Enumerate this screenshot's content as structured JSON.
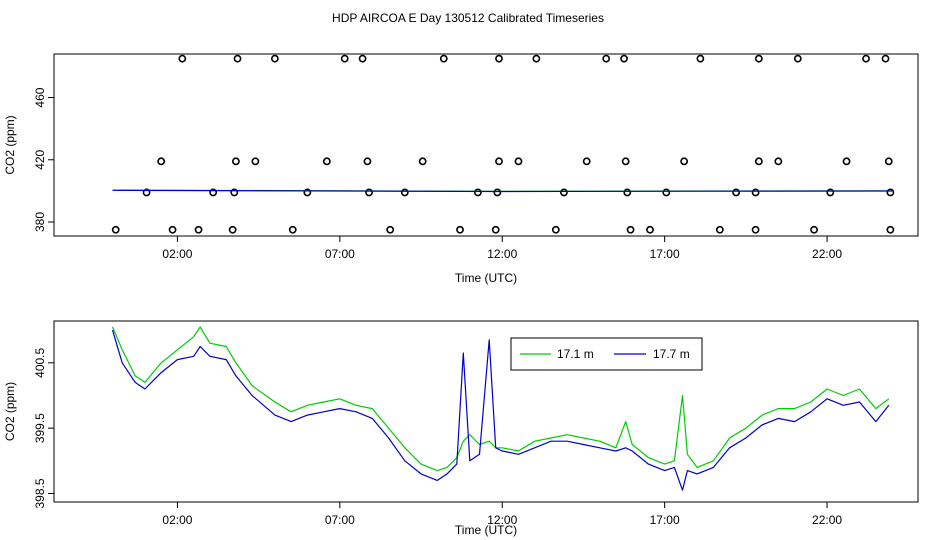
{
  "title": "HDP AIRCOA E  Day 130512  Calibrated Timeseries",
  "colors": {
    "green": "#00cc00",
    "blue": "#0000cc",
    "frame": "#000000"
  },
  "chart_data": [
    {
      "type": "scatter",
      "xlabel": "Time (UTC)",
      "ylabel": "CO2 (ppm)",
      "xlim": [
        -1.8,
        24.8
      ],
      "ylim": [
        371,
        488
      ],
      "x_ticks": [
        2,
        7,
        12,
        17,
        22
      ],
      "x_tick_labels": [
        "02:00",
        "07:00",
        "12:00",
        "17:00",
        "22:00"
      ],
      "y_ticks": [
        380,
        420,
        460
      ],
      "y_tick_labels": [
        "380",
        "420",
        "460"
      ],
      "series": [
        {
          "marker": "open-circle",
          "x": [
            0.1,
            1.85,
            2.65,
            3.7,
            5.55,
            8.55,
            10.7,
            11.8,
            13.65,
            15.95,
            16.55,
            18.7,
            19.8,
            21.6,
            23.95
          ],
          "y": [
            375,
            375,
            375,
            375,
            375,
            375,
            375,
            375,
            375,
            375,
            375,
            375,
            375,
            375,
            375
          ]
        },
        {
          "marker": "open-circle",
          "x": [
            1.05,
            3.1,
            3.75,
            6.0,
            7.9,
            9.0,
            11.25,
            11.85,
            13.9,
            15.85,
            17.05,
            19.2,
            19.8,
            22.1,
            23.95
          ],
          "y": [
            399,
            399,
            399,
            399,
            399,
            399,
            399,
            399,
            399,
            399,
            399,
            399,
            399,
            399,
            399
          ]
        },
        {
          "marker": "open-circle",
          "x": [
            1.5,
            3.8,
            4.4,
            6.6,
            7.85,
            9.55,
            11.9,
            12.5,
            14.6,
            15.8,
            17.6,
            19.9,
            20.5,
            22.6,
            23.9
          ],
          "y": [
            419,
            419,
            419,
            419,
            419,
            419,
            419,
            419,
            419,
            419,
            419,
            419,
            419,
            419,
            419
          ]
        },
        {
          "marker": "open-circle",
          "x": [
            2.15,
            3.85,
            5.0,
            7.15,
            7.7,
            10.2,
            11.9,
            13.05,
            15.2,
            15.75,
            18.1,
            19.9,
            21.1,
            23.2,
            23.8
          ],
          "y": [
            485,
            485,
            485,
            485,
            485,
            485,
            485,
            485,
            485,
            485,
            485,
            485,
            485,
            485,
            485
          ]
        },
        {
          "name": "17.1 m",
          "color": "#00cc00",
          "x": [
            0,
            6,
            12,
            18,
            24
          ],
          "y": [
            400.5,
            400.1,
            399.7,
            399.9,
            400.0
          ]
        },
        {
          "name": "17.7 m",
          "color": "#0000cc",
          "x": [
            0,
            6,
            12,
            18,
            24
          ],
          "y": [
            400.4,
            400.0,
            399.6,
            399.8,
            399.9
          ]
        }
      ]
    },
    {
      "type": "line",
      "xlabel": "Time (UTC)",
      "ylabel": "CO2 (ppm)",
      "xlim": [
        -1.8,
        24.8
      ],
      "ylim": [
        398.37,
        401.14
      ],
      "x_ticks": [
        2,
        7,
        12,
        17,
        22
      ],
      "x_tick_labels": [
        "02:00",
        "07:00",
        "12:00",
        "17:00",
        "22:00"
      ],
      "y_ticks": [
        398.5,
        399.5,
        400.5
      ],
      "y_tick_labels": [
        "398.5",
        "399.5",
        "400.5"
      ],
      "legend": "top-center",
      "series": [
        {
          "name": "17.1 m",
          "color": "#00cc00",
          "x": [
            0,
            0.3,
            0.7,
            1.0,
            1.5,
            2.0,
            2.5,
            2.7,
            3.0,
            3.5,
            3.8,
            4.3,
            5.0,
            5.5,
            6.0,
            6.5,
            7.0,
            7.5,
            8.0,
            8.5,
            9.0,
            9.5,
            10.0,
            10.3,
            10.6,
            10.8,
            11.0,
            11.3,
            11.6,
            11.8,
            12.0,
            12.5,
            13.0,
            13.5,
            14.0,
            14.5,
            15.0,
            15.5,
            15.8,
            16.0,
            16.5,
            17.0,
            17.3,
            17.55,
            17.7,
            18.0,
            18.5,
            19.0,
            19.5,
            20.0,
            20.5,
            21.0,
            21.5,
            22.0,
            22.5,
            23.0,
            23.5,
            23.9
          ],
          "y": [
            401.05,
            400.7,
            400.3,
            400.2,
            400.5,
            400.7,
            400.9,
            401.05,
            400.8,
            400.75,
            400.5,
            400.15,
            399.9,
            399.75,
            399.85,
            399.9,
            399.95,
            399.85,
            399.8,
            399.5,
            399.2,
            398.95,
            398.85,
            398.9,
            399.05,
            399.3,
            399.4,
            399.25,
            399.3,
            399.2,
            399.2,
            399.15,
            399.3,
            399.35,
            399.4,
            399.35,
            399.3,
            399.2,
            399.6,
            399.25,
            399.05,
            398.95,
            399.0,
            400.0,
            399.1,
            398.9,
            399.0,
            399.35,
            399.5,
            399.7,
            399.8,
            399.8,
            399.9,
            400.1,
            400.0,
            400.1,
            399.8,
            399.95
          ]
        },
        {
          "name": "17.7 m",
          "color": "#0000cc",
          "x": [
            0,
            0.3,
            0.7,
            1.0,
            1.5,
            2.0,
            2.5,
            2.7,
            3.0,
            3.5,
            3.8,
            4.3,
            5.0,
            5.5,
            6.0,
            6.5,
            7.0,
            7.5,
            8.0,
            8.5,
            9.0,
            9.5,
            10.0,
            10.3,
            10.6,
            10.8,
            11.0,
            11.3,
            11.6,
            11.8,
            12.0,
            12.5,
            13.0,
            13.5,
            14.0,
            14.5,
            15.0,
            15.5,
            15.8,
            16.0,
            16.5,
            17.0,
            17.3,
            17.55,
            17.7,
            18.0,
            18.5,
            19.0,
            19.5,
            20.0,
            20.5,
            21.0,
            21.5,
            22.0,
            22.5,
            23.0,
            23.5,
            23.9
          ],
          "y": [
            401.0,
            400.5,
            400.2,
            400.1,
            400.35,
            400.55,
            400.6,
            400.75,
            400.6,
            400.55,
            400.3,
            400.0,
            399.7,
            399.6,
            399.7,
            399.75,
            399.8,
            399.75,
            399.65,
            399.35,
            399.0,
            398.8,
            398.7,
            398.8,
            398.95,
            400.65,
            399.0,
            399.1,
            400.85,
            399.2,
            399.15,
            399.1,
            399.2,
            399.3,
            399.3,
            399.25,
            399.2,
            399.15,
            399.2,
            399.15,
            398.95,
            398.85,
            398.9,
            398.55,
            398.85,
            398.8,
            398.9,
            399.2,
            399.35,
            399.55,
            399.65,
            399.6,
            399.75,
            399.95,
            399.85,
            399.9,
            399.6,
            399.85
          ]
        }
      ]
    }
  ]
}
